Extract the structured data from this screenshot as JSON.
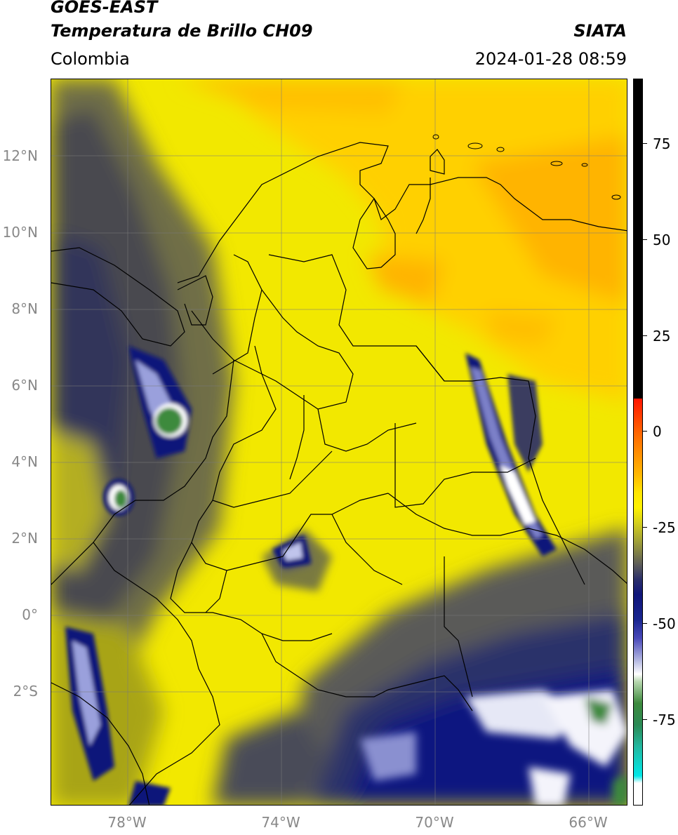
{
  "header": {
    "title": "GOES-EAST",
    "subtitle": "Temperatura de Brillo CH09",
    "organization": "SIATA",
    "region": "Colombia",
    "datetime": "2024-01-28 08:59"
  },
  "map": {
    "lat_range": [
      -5,
      14
    ],
    "lon_range": [
      -80,
      -65
    ],
    "lat_labels": [
      "12°N",
      "10°N",
      "8°N",
      "6°N",
      "4°N",
      "2°N",
      "0°",
      "2°S"
    ],
    "lon_labels": [
      "78°W",
      "74°W",
      "70°W",
      "66°W"
    ],
    "grid": true,
    "colors": {
      "warm_dry": "#f5ea00",
      "hot": "#ffb400",
      "cold_cloud": "#0c1580",
      "very_cold": "#ffffff",
      "coldest": "#3d8a3d"
    }
  },
  "colorbar": {
    "range": [
      -95,
      90
    ],
    "tick_labels": [
      "75",
      "50",
      "25",
      "0",
      "-25",
      "-50",
      "-75"
    ],
    "tick_values": [
      75,
      50,
      25,
      0,
      -25,
      -50,
      -75
    ]
  }
}
